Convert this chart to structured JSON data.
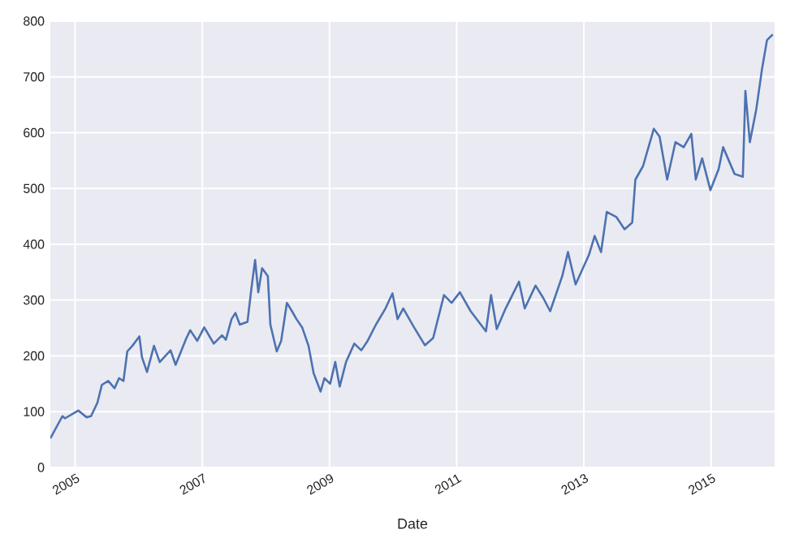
{
  "chart_data": {
    "type": "line",
    "xlabel": "Date",
    "xlim": [
      2004.61,
      2016.0
    ],
    "ylim": [
      0,
      800
    ],
    "xticks": [
      2005,
      2007,
      2009,
      2011,
      2013,
      2015
    ],
    "yticks": [
      0,
      100,
      200,
      300,
      400,
      500,
      600,
      700,
      800
    ],
    "grid": true,
    "series": [
      {
        "color": "#4c72b0",
        "x": [
          2004.61,
          2004.8,
          2004.84,
          2005.05,
          2005.18,
          2005.25,
          2005.35,
          2005.42,
          2005.52,
          2005.62,
          2005.69,
          2005.76,
          2005.82,
          2005.9,
          2006.01,
          2006.05,
          2006.13,
          2006.24,
          2006.33,
          2006.5,
          2006.58,
          2006.75,
          2006.81,
          2006.92,
          2007.03,
          2007.18,
          2007.31,
          2007.37,
          2007.46,
          2007.52,
          2007.59,
          2007.71,
          2007.77,
          2007.83,
          2007.88,
          2007.94,
          2008.03,
          2008.07,
          2008.17,
          2008.24,
          2008.33,
          2008.41,
          2008.48,
          2008.57,
          2008.67,
          2008.75,
          2008.86,
          2008.92,
          2009.01,
          2009.09,
          2009.16,
          2009.26,
          2009.39,
          2009.5,
          2009.6,
          2009.73,
          2009.88,
          2009.99,
          2010.07,
          2010.16,
          2010.33,
          2010.5,
          2010.63,
          2010.8,
          2010.92,
          2011.05,
          2011.22,
          2011.46,
          2011.54,
          2011.63,
          2011.77,
          2011.98,
          2012.07,
          2012.24,
          2012.36,
          2012.47,
          2012.66,
          2012.75,
          2012.87,
          2013.08,
          2013.17,
          2013.27,
          2013.36,
          2013.51,
          2013.64,
          2013.76,
          2013.81,
          2013.93,
          2014.1,
          2014.19,
          2014.31,
          2014.44,
          2014.57,
          2014.69,
          2014.76,
          2014.86,
          2014.99,
          2015.12,
          2015.19,
          2015.37,
          2015.5,
          2015.54,
          2015.61,
          2015.71,
          2015.8,
          2015.88,
          2015.97
        ],
        "values": [
          52,
          92,
          88,
          102,
          90,
          92,
          116,
          148,
          155,
          142,
          160,
          155,
          208,
          218,
          235,
          198,
          171,
          218,
          189,
          210,
          184,
          232,
          246,
          227,
          251,
          222,
          237,
          229,
          266,
          277,
          256,
          261,
          319,
          372,
          314,
          357,
          343,
          256,
          208,
          227,
          295,
          280,
          266,
          251,
          218,
          169,
          136,
          160,
          150,
          189,
          145,
          189,
          222,
          210,
          227,
          256,
          285,
          312,
          266,
          285,
          251,
          219,
          232,
          309,
          295,
          314,
          280,
          244,
          309,
          248,
          285,
          333,
          285,
          326,
          304,
          280,
          343,
          386,
          328,
          381,
          415,
          386,
          458,
          449,
          427,
          439,
          516,
          540,
          607,
          593,
          516,
          583,
          574,
          598,
          516,
          554,
          497,
          535,
          574,
          526,
          521,
          675,
          583,
          641,
          713,
          766,
          776
        ]
      }
    ]
  }
}
